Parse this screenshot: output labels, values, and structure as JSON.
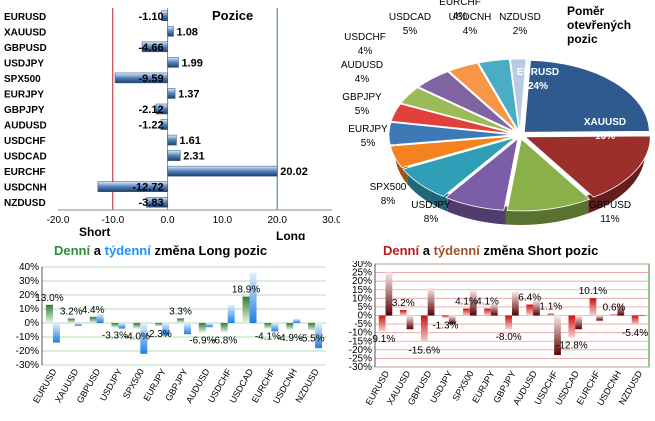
{
  "positions": {
    "title": "Pozice",
    "short_label": "Short",
    "long_label": "Long"
  },
  "share": {
    "title": "Poměr otevřených pozic"
  },
  "long_change": {
    "word_daily": "Denní",
    "word_and": "a",
    "word_weekly": "týdenní",
    "word_rest": "změna Long pozic"
  },
  "short_change": {
    "word_daily": "Denní",
    "word_and": "a",
    "word_weekly": "týdenní",
    "word_rest": "změna Short pozic"
  },
  "colors": {
    "bar_blue": "#4f81bd",
    "pie_eurusd": "#2e5a8f",
    "pie_xauusd": "#9c2e2b",
    "pie_gbpusd": "#8ab04a",
    "pie_usdjpy": "#7b5ea7",
    "pie_spx500": "#2f9fb8",
    "pie_eurjpy": "#f58220",
    "pie_gbpjpy": "#3d78b7",
    "pie_audusd": "#e0413c",
    "pie_usdchf": "#9bbb59",
    "pie_usdcad": "#8064a2",
    "pie_eurchf": "#4bacc6",
    "pie_usdcnh": "#f79646",
    "pie_nzdusd": "#b9cbe4",
    "green": "#2e8b3a",
    "red": "#c0171c",
    "brown": "#a0522d",
    "cyan": "#1e90ff",
    "light_blue": "#6aa8e8",
    "dark_red": "#8b0000",
    "pale_red": "#f2b9b9",
    "grid_green": "#2e8b3a",
    "grid_red": "#c0171c"
  },
  "chart_data": [
    {
      "type": "bar",
      "orientation": "horizontal",
      "title": "Pozice",
      "categories": [
        "EURUSD",
        "XAUUSD",
        "GBPUSD",
        "USDJPY",
        "SPX500",
        "EURJPY",
        "GBPJPY",
        "AUDUSD",
        "USDCHF",
        "USDCAD",
        "EURCHF",
        "USDCNH",
        "NZDUSD"
      ],
      "values": [
        -1.1,
        1.08,
        -4.66,
        1.99,
        -9.59,
        1.37,
        -2.12,
        -1.22,
        1.61,
        2.31,
        20.02,
        -12.72,
        -3.83
      ],
      "value_labels": [
        "-1.10",
        "1.08",
        "-4.66",
        "1.99",
        "-9.59",
        "1.37",
        "-2.12",
        "-1.22",
        "1.61",
        "2.31",
        "20.02",
        "-12.72",
        "-3.83"
      ],
      "xlim": [
        -20,
        30
      ],
      "xticks": [
        "-20.0",
        "-10.0",
        "0.0",
        "10.0",
        "20.0",
        "30.0"
      ],
      "xtick_values": [
        -20,
        -10,
        0,
        10,
        20,
        30
      ],
      "annotations": [
        "Short",
        "Long"
      ]
    },
    {
      "type": "pie",
      "title": "Poměr otevřených pozic",
      "categories": [
        "EURUSD",
        "XAUUSD",
        "GBPUSD",
        "USDJPY",
        "SPX500",
        "EURJPY",
        "GBPJPY",
        "AUDUSD",
        "USDCHF",
        "USDCAD",
        "USDCNH",
        "EURCHF",
        "NZDUSD"
      ],
      "values": [
        24,
        16,
        11,
        8,
        8,
        5,
        5,
        4,
        4,
        5,
        4,
        4,
        2
      ],
      "value_labels": [
        "24%",
        "16%",
        "11%",
        "8%",
        "8%",
        "5%",
        "5%",
        "4%",
        "4%",
        "5%",
        "4%",
        "4%",
        "2%"
      ]
    },
    {
      "type": "bar",
      "title": "Denní a týdenní změna Long pozic",
      "categories": [
        "EURUSD",
        "XAUUSD",
        "GBPUSD",
        "USDJPY",
        "SPX500",
        "EURJPY",
        "GBPJPY",
        "AUDUSD",
        "USDCHF",
        "USDCAD",
        "EURCHF",
        "USDCNH",
        "NZDUSD"
      ],
      "series": [
        {
          "name": "Denní",
          "values": [
            13.0,
            3.2,
            4.4,
            -3.3,
            -4.0,
            -2.3,
            3.3,
            -6.9,
            -6.8,
            18.9,
            -4.1,
            -4.9,
            -5.5
          ]
        },
        {
          "name": "týdenní",
          "values": [
            -14.0,
            -2.0,
            6.5,
            -4.0,
            -22.0,
            -9.0,
            -8.0,
            -3.0,
            13.0,
            36.0,
            -6.0,
            3.0,
            -18.0
          ]
        }
      ],
      "value_labels": [
        "13.0%",
        "3.2%",
        "4.4%",
        "-3.3%",
        "-4.0%",
        "-2.3%",
        "3.3%",
        "-6.9%",
        "-6.8%",
        "18.9%",
        "-4.1%",
        "-4.9%",
        "-5.5%"
      ],
      "ylim": [
        -30,
        40
      ],
      "yticks": [
        "40%",
        "30%",
        "20%",
        "10%",
        "0%",
        "-10%",
        "-20%",
        "-30%"
      ],
      "ytick_values": [
        40,
        30,
        20,
        10,
        0,
        -10,
        -20,
        -30
      ]
    },
    {
      "type": "bar",
      "title": "Denní a týdenní změna Short pozic",
      "categories": [
        "EURUSD",
        "XAUUSD",
        "GBPUSD",
        "USDJPY",
        "SPX500",
        "EURJPY",
        "GBPJPY",
        "AUDUSD",
        "USDCHF",
        "USDCAD",
        "EURCHF",
        "USDCNH",
        "NZDUSD"
      ],
      "series": [
        {
          "name": "Denní",
          "values": [
            -9.1,
            3.2,
            -15.6,
            -1.3,
            4.1,
            4.1,
            -8.0,
            6.4,
            1.1,
            -12.8,
            10.1,
            0.6,
            -5.4
          ]
        },
        {
          "name": "týdenní",
          "values": [
            25.0,
            -8.0,
            16.0,
            -5.0,
            15.0,
            7.0,
            14.0,
            9.0,
            -23.0,
            -8.0,
            -3.0,
            7.0,
            0.5
          ]
        }
      ],
      "value_labels": [
        "-9.1%",
        "3.2%",
        "-15.6%",
        "-1.3%",
        "4.1%",
        "4.1%",
        "-8.0%",
        "6.4%",
        "1.1%",
        "-12.8%",
        "10.1%",
        "0.6%",
        "-5.4%"
      ],
      "ylim": [
        -30,
        30
      ],
      "yticks": [
        "30%",
        "25%",
        "20%",
        "15%",
        "10%",
        "5%",
        "0%",
        "-5%",
        "-10%",
        "-15%",
        "-20%",
        "-25%",
        "-30%"
      ],
      "ytick_values": [
        30,
        25,
        20,
        15,
        10,
        5,
        0,
        -5,
        -10,
        -15,
        -20,
        -25,
        -30
      ]
    }
  ]
}
